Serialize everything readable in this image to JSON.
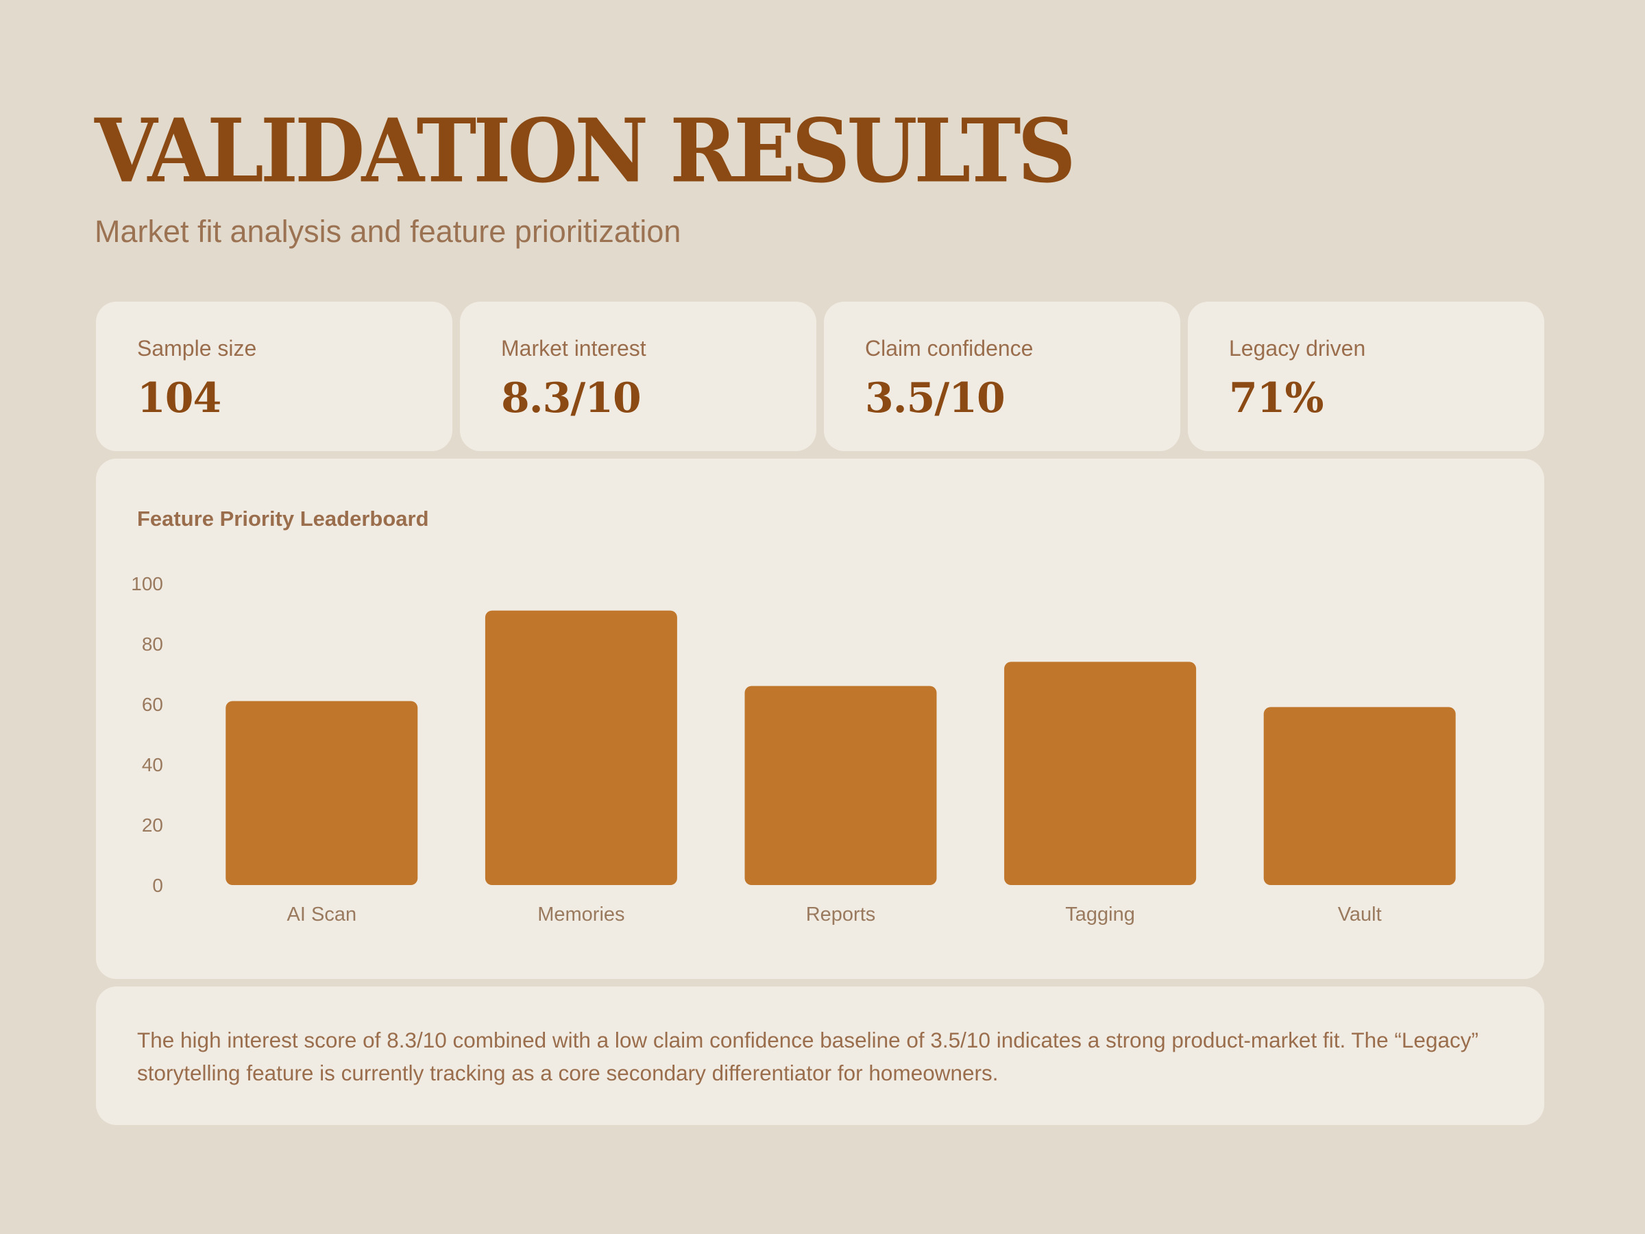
{
  "header": {
    "title": "VALIDATION RESULTS",
    "subtitle": "Market fit analysis and feature prioritization"
  },
  "stats": [
    {
      "label": "Sample size",
      "value": "104"
    },
    {
      "label": "Market interest",
      "value": "8.3/10"
    },
    {
      "label": "Claim confidence",
      "value": "3.5/10"
    },
    {
      "label": "Legacy driven",
      "value": "71%"
    }
  ],
  "chart": {
    "heading": "Feature Priority Leaderboard"
  },
  "chart_data": {
    "type": "bar",
    "title": "Feature Priority Leaderboard",
    "categories": [
      "AI Scan",
      "Memories",
      "Reports",
      "Tagging",
      "Vault"
    ],
    "values": [
      61,
      91,
      66,
      74,
      59
    ],
    "ylim": [
      0,
      100
    ],
    "yticks": [
      0,
      20,
      40,
      60,
      80,
      100
    ],
    "xlabel": "",
    "ylabel": "",
    "grid": false,
    "legend": "none"
  },
  "summary": {
    "text": "The high interest score of 8.3/10 combined with a low claim confidence baseline of 3.5/10 indicates a strong product-market fit. The “Legacy” storytelling feature is currently tracking as a core secondary differentiator for homeowners."
  },
  "colors": {
    "background": "#e2dacd",
    "card": "#f1ece3",
    "title": "#8b4a14",
    "bar": "#c0772c",
    "text_muted": "#9a6e4d"
  }
}
